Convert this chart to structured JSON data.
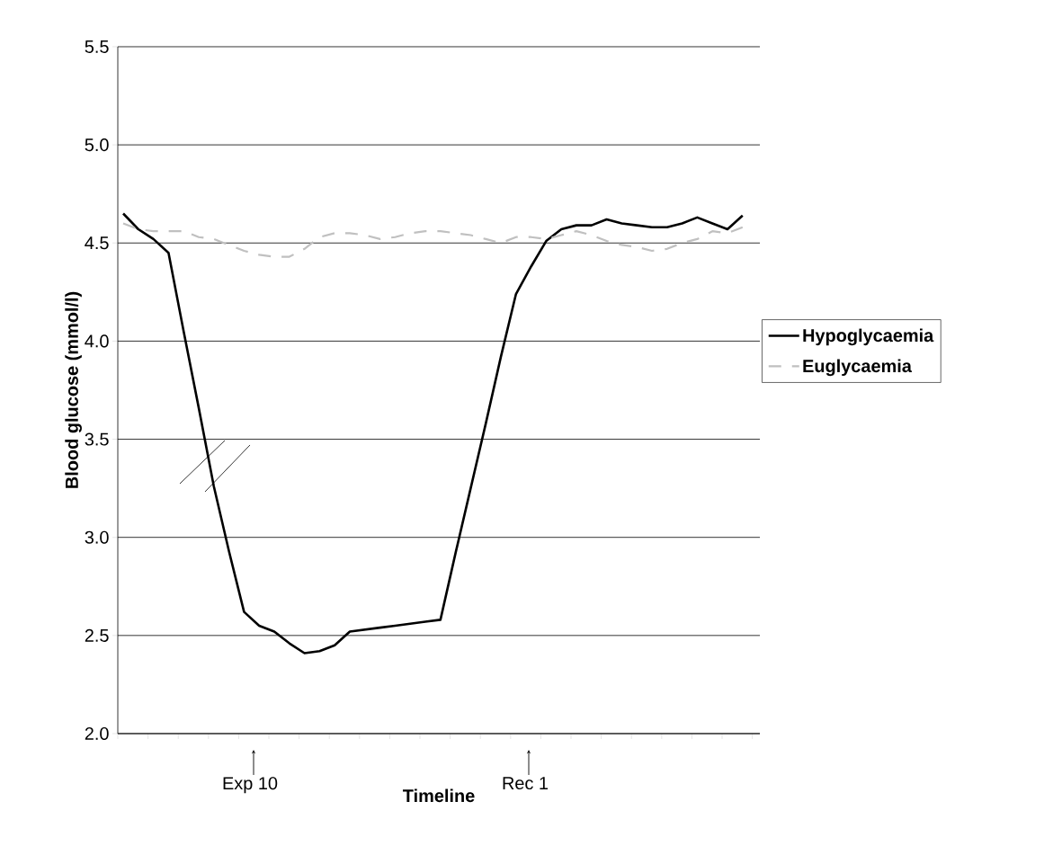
{
  "chart_data": {
    "type": "line",
    "xlabel": "Timeline",
    "ylabel": "Blood glucose (mmol/l)",
    "categories": [
      null,
      null,
      null,
      null,
      null,
      null,
      null,
      null,
      null,
      null,
      null,
      null,
      null,
      null,
      null,
      null,
      null,
      null,
      null,
      null,
      null,
      null,
      null,
      null,
      null,
      null,
      null,
      null,
      null,
      null,
      null,
      null,
      null,
      null,
      null,
      null,
      null,
      null,
      null,
      null,
      null,
      null
    ],
    "series": [
      {
        "name": "Hypoglycaemia",
        "color": "#000000",
        "line_style": "solid",
        "values": [
          4.65,
          4.57,
          4.52,
          4.45,
          4.05,
          3.66,
          3.26,
          2.93,
          2.62,
          2.55,
          2.52,
          2.46,
          2.41,
          2.42,
          2.45,
          2.52,
          2.53,
          2.54,
          2.55,
          2.56,
          2.57,
          2.58,
          2.92,
          3.25,
          3.58,
          3.92,
          4.24,
          4.38,
          4.51,
          4.57,
          4.59,
          4.59,
          4.62,
          4.6,
          4.59,
          4.58,
          4.58,
          4.6,
          4.63,
          4.6,
          4.57,
          4.64
        ]
      },
      {
        "name": "Euglycaemia",
        "color": "#c0c0c0",
        "line_style": "dashed",
        "values": [
          4.6,
          4.57,
          4.56,
          4.56,
          4.56,
          4.53,
          4.52,
          4.49,
          4.46,
          4.44,
          4.43,
          4.43,
          4.47,
          4.53,
          4.55,
          4.55,
          4.54,
          4.52,
          4.53,
          4.55,
          4.56,
          4.56,
          4.55,
          4.54,
          4.52,
          4.5,
          4.53,
          4.53,
          4.52,
          4.54,
          4.56,
          4.54,
          4.51,
          4.49,
          4.48,
          4.46,
          4.47,
          4.5,
          4.52,
          4.56,
          4.55,
          4.58
        ]
      }
    ],
    "ylim": [
      2,
      5.5
    ],
    "yticks": [
      {
        "value": 2,
        "label": "2.0"
      },
      {
        "value": 2.5,
        "label": "2.5"
      },
      {
        "value": 3,
        "label": "3.0"
      },
      {
        "value": 3.5,
        "label": "3.5"
      },
      {
        "value": 4,
        "label": "4.0"
      },
      {
        "value": 4.5,
        "label": "4.5"
      },
      {
        "value": 5,
        "label": "5.0"
      },
      {
        "value": 5.5,
        "label": "5.5"
      }
    ],
    "grid": "y",
    "legend": "right",
    "tick_labels": "y",
    "marker": "none",
    "annotations": [
      "Exp 10",
      "Rec 1"
    ]
  }
}
